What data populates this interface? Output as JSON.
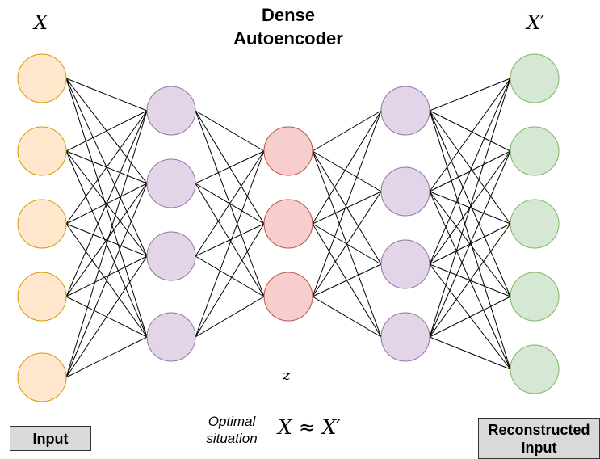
{
  "title": "Dense\nAutoencoder",
  "labels": {
    "x": "X",
    "x_prime": "X′",
    "z": "z",
    "optimal": "Optimal\nsituation",
    "approx": "X ≈ X′"
  },
  "boxes": {
    "input": "Input",
    "reconstructed": "Reconstructed\nInput"
  },
  "layers": [
    {
      "name": "input",
      "nodes": 5,
      "fill": "#ffe6cc",
      "stroke": "#d79b00"
    },
    {
      "name": "encoder-hidden",
      "nodes": 4,
      "fill": "#e1d5e7",
      "stroke": "#9673a6"
    },
    {
      "name": "latent",
      "nodes": 3,
      "fill": "#f8cecc",
      "stroke": "#b85450"
    },
    {
      "name": "decoder-hidden",
      "nodes": 4,
      "fill": "#e1d5e7",
      "stroke": "#9673a6"
    },
    {
      "name": "output",
      "nodes": 5,
      "fill": "#d5e8d4",
      "stroke": "#82b366"
    }
  ]
}
